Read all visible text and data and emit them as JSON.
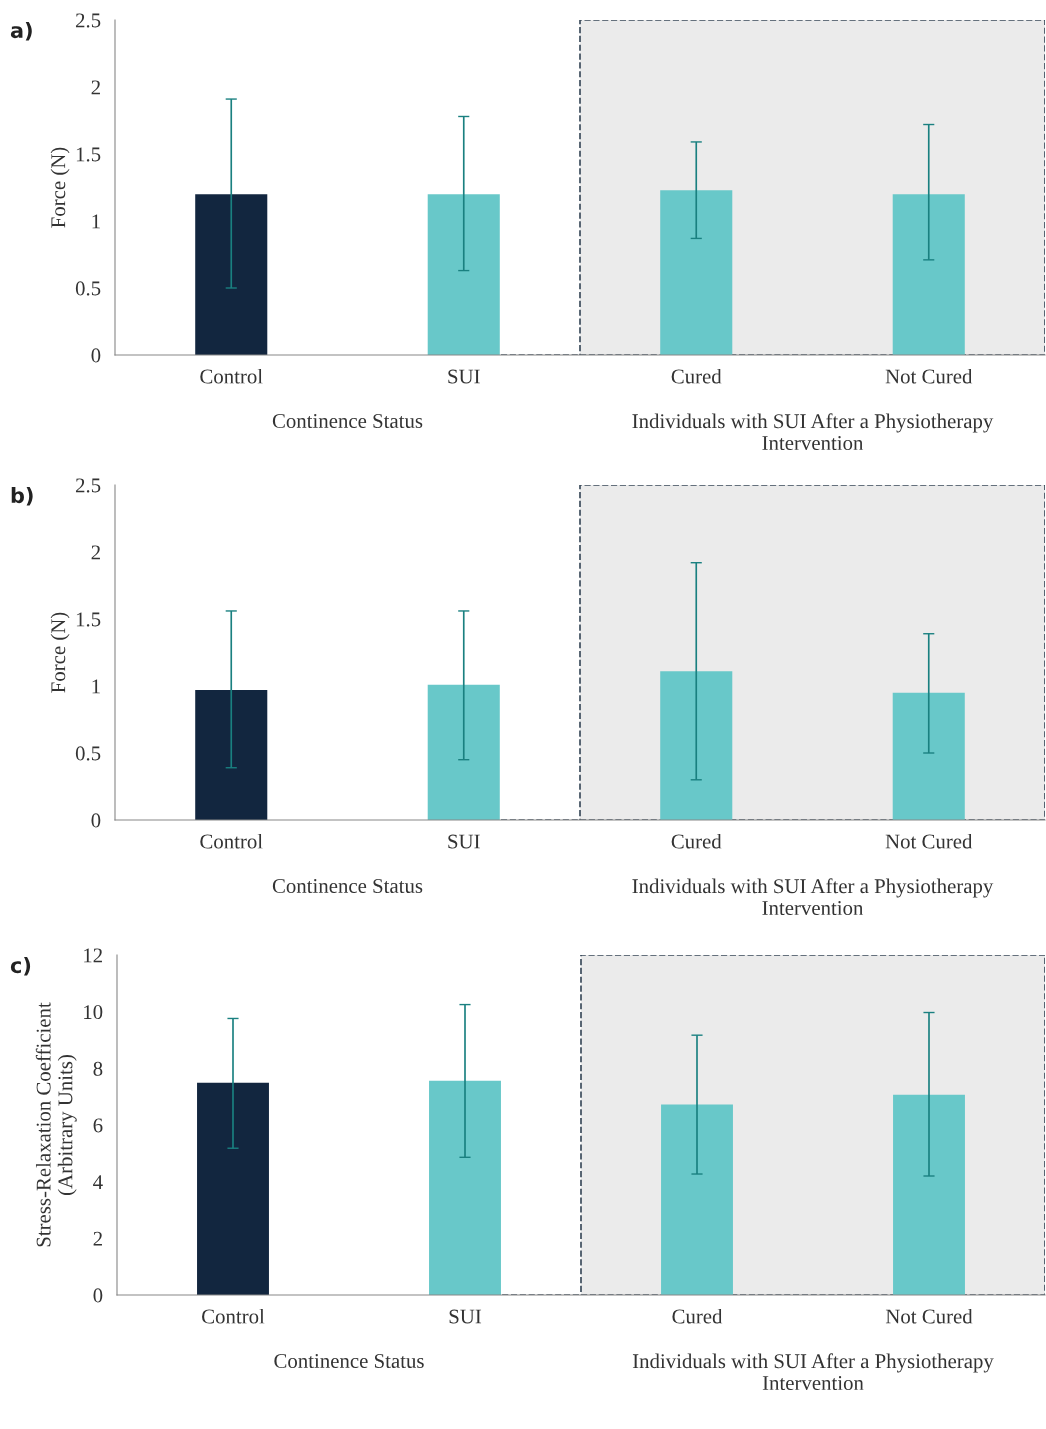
{
  "chart_data": [
    {
      "type": "bar",
      "title": "a)",
      "ylabel": "Force (N)",
      "categories": [
        "Control",
        "SUI",
        "Cured",
        "Not Cured"
      ],
      "colors": [
        "#12263f",
        "#68c8c9",
        "#68c8c9",
        "#68c8c9"
      ],
      "values": [
        1.2,
        1.2,
        1.23,
        1.2
      ],
      "errors": [
        [
          0.5,
          1.91
        ],
        [
          0.63,
          1.78
        ],
        [
          0.87,
          1.59
        ],
        [
          0.71,
          1.72
        ]
      ],
      "ylim": [
        0,
        2.5
      ],
      "yticks": [
        0,
        0.5,
        1,
        1.5,
        2,
        2.5
      ],
      "grid": false,
      "bands": [
        {
          "axis": "x",
          "from": "Cured",
          "to": "Not Cured",
          "color": "#ebebeb"
        }
      ],
      "annotations": [
        "Continence Status",
        "Individuals with SUI After a Physiotherapy Intervention"
      ]
    },
    {
      "type": "bar",
      "title": "b)",
      "ylabel": "Force (N)",
      "categories": [
        "Control",
        "SUI",
        "Cured",
        "Not Cured"
      ],
      "colors": [
        "#12263f",
        "#68c8c9",
        "#68c8c9",
        "#68c8c9"
      ],
      "values": [
        0.97,
        1.01,
        1.11,
        0.95
      ],
      "errors": [
        [
          0.39,
          1.56
        ],
        [
          0.45,
          1.56
        ],
        [
          0.3,
          1.92
        ],
        [
          0.5,
          1.39
        ]
      ],
      "ylim": [
        0,
        2.5
      ],
      "yticks": [
        0,
        0.5,
        1,
        1.5,
        2,
        2.5
      ],
      "grid": false,
      "bands": [
        {
          "axis": "x",
          "from": "Cured",
          "to": "Not Cured",
          "color": "#ebebeb"
        }
      ],
      "annotations": [
        "Continence Status",
        "Individuals with SUI After a Physiotherapy Intervention"
      ]
    },
    {
      "type": "bar",
      "title": "c)",
      "ylabel": "Stress-Relaxation Coefficient\n(Arbitrary Units)",
      "categories": [
        "Control",
        "SUI",
        "Cured",
        "Not Cured"
      ],
      "colors": [
        "#12263f",
        "#68c8c9",
        "#68c8c9",
        "#68c8c9"
      ],
      "values": [
        7.49,
        7.56,
        6.72,
        7.07
      ],
      "errors": [
        [
          5.18,
          9.76
        ],
        [
          4.86,
          10.25
        ],
        [
          4.27,
          9.17
        ],
        [
          4.2,
          9.97
        ]
      ],
      "ylim": [
        0,
        12
      ],
      "yticks": [
        0,
        2,
        4,
        6,
        8,
        10,
        12
      ],
      "grid": false,
      "bands": [
        {
          "axis": "x",
          "from": "Cured",
          "to": "Not Cured",
          "color": "#ebebeb"
        }
      ],
      "annotations": [
        "Continence Status",
        "Individuals with SUI After a Physiotherapy Intervention"
      ]
    }
  ]
}
